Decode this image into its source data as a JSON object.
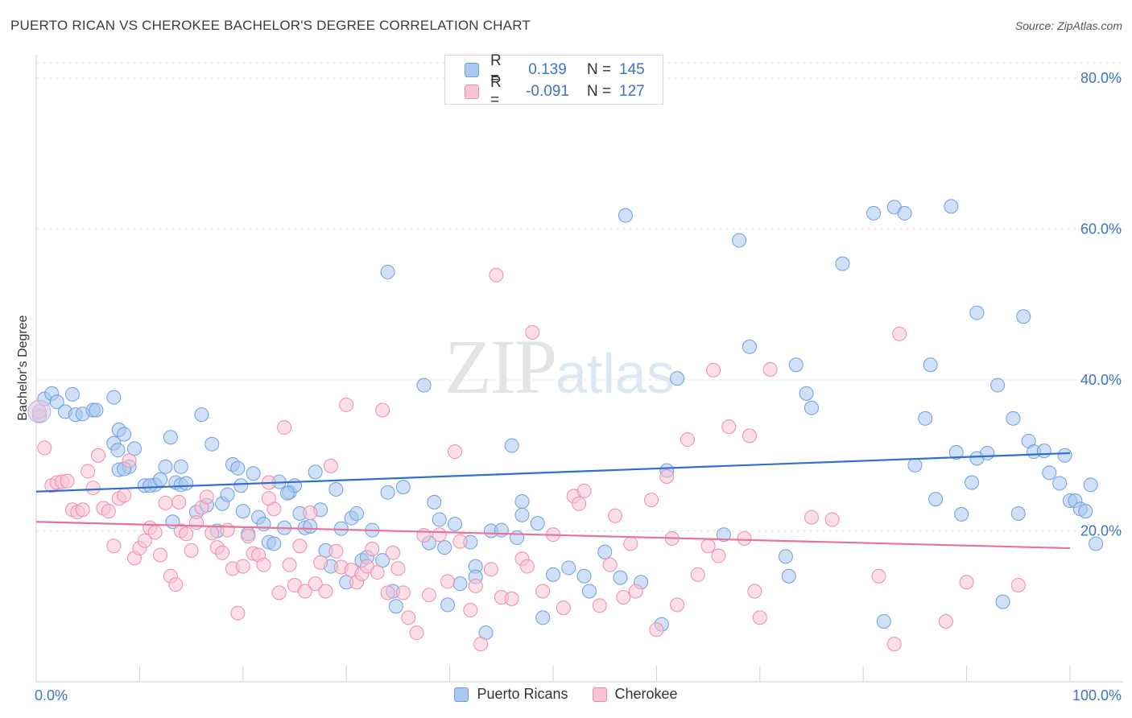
{
  "title": "PUERTO RICAN VS CHEROKEE BACHELOR'S DEGREE CORRELATION CHART",
  "source": "Source: ZipAtlas.com",
  "watermark": {
    "zip": "ZIP",
    "atlas": "atlas"
  },
  "legend": {
    "rows": [
      {
        "r_label": "R =",
        "r_value": "0.139",
        "n_label": "N =",
        "n_value": "145",
        "color": "#aac8f0",
        "border": "#6e9ee0"
      },
      {
        "r_label": "R =",
        "r_value": "-0.091",
        "n_label": "N =",
        "n_value": "127",
        "color": "#f8c3d2",
        "border": "#ef8cab"
      }
    ]
  },
  "bottom_legend": [
    {
      "label": "Puerto Ricans",
      "color": "#aac8f0",
      "border": "#6e9ee0"
    },
    {
      "label": "Cherokee",
      "color": "#f8c3d2",
      "border": "#ef8cab"
    }
  ],
  "chart_data": {
    "type": "scatter",
    "title": "PUERTO RICAN VS CHEROKEE BACHELOR'S DEGREE CORRELATION CHART",
    "xlabel": "",
    "ylabel": "Bachelor's Degree",
    "xlim": [
      0,
      100
    ],
    "ylim": [
      0,
      80
    ],
    "x_tick_labels": [
      "0.0%",
      "100.0%"
    ],
    "y_ticks": [
      20,
      40,
      60,
      80
    ],
    "y_tick_labels": [
      "20.0%",
      "40.0%",
      "60.0%",
      "80.0%"
    ],
    "grid": "horizontal dashed",
    "legend_position": "top-center",
    "series": [
      {
        "name": "Puerto Ricans",
        "color": "#6e9ee0",
        "fill": "#aac8f0",
        "trend": {
          "x": [
            0,
            100
          ],
          "y": [
            25.2,
            30.3
          ]
        },
        "points": [
          [
            0.3,
            35.3
          ],
          [
            0.8,
            37.5
          ],
          [
            1.5,
            38.2
          ],
          [
            2.0,
            37.1
          ],
          [
            2.8,
            35.8
          ],
          [
            3.5,
            38.1
          ],
          [
            3.8,
            35.4
          ],
          [
            4.5,
            35.5
          ],
          [
            5.5,
            36.0
          ],
          [
            5.8,
            36.0
          ],
          [
            7.5,
            37.7
          ],
          [
            8.0,
            33.4
          ],
          [
            8.5,
            32.8
          ],
          [
            7.5,
            31.6
          ],
          [
            7.9,
            30.7
          ],
          [
            8.0,
            28.1
          ],
          [
            9.0,
            28.5
          ],
          [
            9.5,
            30.9
          ],
          [
            10.5,
            26.0
          ],
          [
            11.5,
            26.1
          ],
          [
            11.0,
            26.0
          ],
          [
            12.0,
            26.8
          ],
          [
            12.5,
            28.5
          ],
          [
            13.0,
            32.4
          ],
          [
            13.5,
            26.4
          ],
          [
            13.2,
            21.2
          ],
          [
            14.0,
            26.1
          ],
          [
            14.5,
            26.3
          ],
          [
            15.5,
            22.5
          ],
          [
            16.0,
            35.4
          ],
          [
            16.5,
            23.4
          ],
          [
            17.0,
            31.5
          ],
          [
            17.5,
            20.0
          ],
          [
            18.0,
            23.6
          ],
          [
            18.5,
            24.8
          ],
          [
            19.0,
            28.8
          ],
          [
            19.5,
            28.3
          ],
          [
            20.0,
            22.6
          ],
          [
            20.5,
            19.6
          ],
          [
            21.0,
            27.6
          ],
          [
            21.5,
            21.8
          ],
          [
            22.0,
            20.9
          ],
          [
            22.5,
            18.5
          ],
          [
            23.0,
            18.3
          ],
          [
            23.5,
            26.5
          ],
          [
            24.0,
            20.4
          ],
          [
            24.5,
            25.1
          ],
          [
            25.0,
            26.0
          ],
          [
            25.5,
            22.3
          ],
          [
            26.0,
            20.4
          ],
          [
            26.5,
            20.6
          ],
          [
            27.0,
            27.8
          ],
          [
            27.5,
            22.8
          ],
          [
            28.0,
            17.4
          ],
          [
            28.5,
            15.3
          ],
          [
            29.0,
            25.5
          ],
          [
            29.5,
            20.3
          ],
          [
            30.0,
            13.2
          ],
          [
            30.5,
            21.7
          ],
          [
            31.0,
            22.3
          ],
          [
            31.5,
            16.1
          ],
          [
            32.0,
            16.5
          ],
          [
            32.5,
            20.1
          ],
          [
            33.5,
            16.1
          ],
          [
            34.0,
            25.1
          ],
          [
            34.5,
            12.0
          ],
          [
            34.0,
            54.3
          ],
          [
            34.8,
            10.0
          ],
          [
            35.5,
            25.8
          ],
          [
            37.5,
            39.3
          ],
          [
            38.0,
            18.4
          ],
          [
            38.5,
            23.8
          ],
          [
            39.0,
            21.5
          ],
          [
            39.5,
            17.8
          ],
          [
            39.8,
            10.2
          ],
          [
            40.5,
            20.9
          ],
          [
            41.0,
            13.0
          ],
          [
            42.0,
            18.5
          ],
          [
            42.5,
            15.3
          ],
          [
            42.5,
            13.9
          ],
          [
            43.5,
            6.5
          ],
          [
            44.0,
            20.0
          ],
          [
            45.0,
            20.1
          ],
          [
            46.0,
            31.3
          ],
          [
            46.5,
            19.1
          ],
          [
            47.0,
            23.9
          ],
          [
            47.0,
            22.1
          ],
          [
            48.5,
            21.0
          ],
          [
            49.0,
            8.5
          ],
          [
            50.0,
            14.2
          ],
          [
            51.5,
            15.1
          ],
          [
            53.5,
            12.0
          ],
          [
            53.0,
            14.0
          ],
          [
            55.0,
            17.2
          ],
          [
            56.5,
            13.8
          ],
          [
            57.0,
            61.8
          ],
          [
            58.5,
            13.2
          ],
          [
            60.5,
            7.6
          ],
          [
            61.0,
            28.0
          ],
          [
            62.0,
            40.2
          ],
          [
            66.5,
            19.5
          ],
          [
            68.0,
            58.5
          ],
          [
            69.0,
            44.4
          ],
          [
            72.5,
            16.6
          ],
          [
            72.8,
            14.0
          ],
          [
            73.5,
            42.0
          ],
          [
            74.5,
            38.2
          ],
          [
            75.0,
            36.3
          ],
          [
            78.0,
            55.4
          ],
          [
            81.0,
            62.1
          ],
          [
            82.0,
            8.0
          ],
          [
            83.0,
            62.9
          ],
          [
            84.0,
            62.1
          ],
          [
            85.0,
            28.7
          ],
          [
            86.0,
            34.9
          ],
          [
            86.5,
            42.0
          ],
          [
            87.0,
            24.2
          ],
          [
            88.5,
            63.0
          ],
          [
            89.0,
            30.4
          ],
          [
            89.5,
            22.2
          ],
          [
            90.5,
            26.4
          ],
          [
            91.0,
            29.6
          ],
          [
            91.0,
            48.9
          ],
          [
            92.0,
            30.3
          ],
          [
            93.0,
            39.3
          ],
          [
            93.5,
            10.6
          ],
          [
            94.5,
            34.9
          ],
          [
            95.0,
            22.3
          ],
          [
            95.5,
            48.4
          ],
          [
            96.0,
            31.9
          ],
          [
            96.5,
            30.5
          ],
          [
            97.5,
            30.6
          ],
          [
            98.0,
            27.7
          ],
          [
            99.0,
            26.3
          ],
          [
            99.5,
            30.0
          ],
          [
            100.0,
            24.0
          ],
          [
            100.5,
            24.0
          ],
          [
            101.0,
            22.9
          ],
          [
            101.5,
            22.6
          ],
          [
            102.0,
            26.1
          ],
          [
            102.5,
            18.3
          ],
          [
            8.5,
            28.2
          ],
          [
            14.0,
            28.5
          ],
          [
            19.8,
            26.0
          ],
          [
            24.3,
            25.0
          ]
        ]
      },
      {
        "name": "Cherokee",
        "color": "#ef8cab",
        "fill": "#f8c3d2",
        "trend": {
          "x": [
            0,
            100
          ],
          "y": [
            21.2,
            17.7
          ]
        },
        "points": [
          [
            0.3,
            35.8
          ],
          [
            0.8,
            31.0
          ],
          [
            1.5,
            26.0
          ],
          [
            2.0,
            26.4
          ],
          [
            2.5,
            26.5
          ],
          [
            3.0,
            26.6
          ],
          [
            3.5,
            22.8
          ],
          [
            4.0,
            22.5
          ],
          [
            4.5,
            22.8
          ],
          [
            5.0,
            27.9
          ],
          [
            5.5,
            25.7
          ],
          [
            6.0,
            30.0
          ],
          [
            6.5,
            23.0
          ],
          [
            7.0,
            22.6
          ],
          [
            7.5,
            18.0
          ],
          [
            8.0,
            24.3
          ],
          [
            8.5,
            24.7
          ],
          [
            9.0,
            29.3
          ],
          [
            9.5,
            16.4
          ],
          [
            10.0,
            17.7
          ],
          [
            10.5,
            18.7
          ],
          [
            11.0,
            20.4
          ],
          [
            11.5,
            19.8
          ],
          [
            12.0,
            16.8
          ],
          [
            12.5,
            23.7
          ],
          [
            13.0,
            14.0
          ],
          [
            13.5,
            12.9
          ],
          [
            14.0,
            20.0
          ],
          [
            14.5,
            19.6
          ],
          [
            15.0,
            17.4
          ],
          [
            15.5,
            21.1
          ],
          [
            16.0,
            23.1
          ],
          [
            16.5,
            24.5
          ],
          [
            17.0,
            19.7
          ],
          [
            17.5,
            17.8
          ],
          [
            18.0,
            17.1
          ],
          [
            18.5,
            20.1
          ],
          [
            19.0,
            15.0
          ],
          [
            19.5,
            9.1
          ],
          [
            20.0,
            15.3
          ],
          [
            20.5,
            19.3
          ],
          [
            21.0,
            17.0
          ],
          [
            21.5,
            16.8
          ],
          [
            22.0,
            15.5
          ],
          [
            22.5,
            26.4
          ],
          [
            23.0,
            22.9
          ],
          [
            23.5,
            11.8
          ],
          [
            24.0,
            33.7
          ],
          [
            24.5,
            15.5
          ],
          [
            25.0,
            12.8
          ],
          [
            25.5,
            18.0
          ],
          [
            26.0,
            12.0
          ],
          [
            26.5,
            22.4
          ],
          [
            27.0,
            13.0
          ],
          [
            27.5,
            15.8
          ],
          [
            28.0,
            12.0
          ],
          [
            28.5,
            28.6
          ],
          [
            29.0,
            17.3
          ],
          [
            29.5,
            15.2
          ],
          [
            30.0,
            36.7
          ],
          [
            30.5,
            14.8
          ],
          [
            31.0,
            13.2
          ],
          [
            31.5,
            14.3
          ],
          [
            32.0,
            15.3
          ],
          [
            32.5,
            17.6
          ],
          [
            33.0,
            14.5
          ],
          [
            33.5,
            36.0
          ],
          [
            34.0,
            11.8
          ],
          [
            34.5,
            17.1
          ],
          [
            35.0,
            15.0
          ],
          [
            35.5,
            11.8
          ],
          [
            36.0,
            8.5
          ],
          [
            36.8,
            6.5
          ],
          [
            37.5,
            19.4
          ],
          [
            38.0,
            11.5
          ],
          [
            39.0,
            19.5
          ],
          [
            39.8,
            13.3
          ],
          [
            40.5,
            30.5
          ],
          [
            41.0,
            18.6
          ],
          [
            42.0,
            9.5
          ],
          [
            42.5,
            12.7
          ],
          [
            43.0,
            5.0
          ],
          [
            44.0,
            14.9
          ],
          [
            44.5,
            53.9
          ],
          [
            45.0,
            11.2
          ],
          [
            46.0,
            11.0
          ],
          [
            47.0,
            16.3
          ],
          [
            47.5,
            15.3
          ],
          [
            48.0,
            46.3
          ],
          [
            49.0,
            12.0
          ],
          [
            50.0,
            19.5
          ],
          [
            51.0,
            9.8
          ],
          [
            52.0,
            24.6
          ],
          [
            52.5,
            23.6
          ],
          [
            53.0,
            25.3
          ],
          [
            54.5,
            10.1
          ],
          [
            55.5,
            15.5
          ],
          [
            56.0,
            22.0
          ],
          [
            56.8,
            11.2
          ],
          [
            57.5,
            18.3
          ],
          [
            58.0,
            12.0
          ],
          [
            59.5,
            24.1
          ],
          [
            60.0,
            6.9
          ],
          [
            61.0,
            27.2
          ],
          [
            61.5,
            19.0
          ],
          [
            62.0,
            10.2
          ],
          [
            63.0,
            32.1
          ],
          [
            64.0,
            14.2
          ],
          [
            65.0,
            18.0
          ],
          [
            65.5,
            41.3
          ],
          [
            66.0,
            16.7
          ],
          [
            67.0,
            33.8
          ],
          [
            68.5,
            19.0
          ],
          [
            69.0,
            32.6
          ],
          [
            69.5,
            12.0
          ],
          [
            70.0,
            8.5
          ],
          [
            71.0,
            41.4
          ],
          [
            75.0,
            21.8
          ],
          [
            77.0,
            21.5
          ],
          [
            81.5,
            14.0
          ],
          [
            83.0,
            5.0
          ],
          [
            83.5,
            46.1
          ],
          [
            88.0,
            8.0
          ],
          [
            90.0,
            13.2
          ],
          [
            95.0,
            12.8
          ],
          [
            13.8,
            23.8
          ],
          [
            22.5,
            24.3
          ]
        ]
      }
    ]
  }
}
